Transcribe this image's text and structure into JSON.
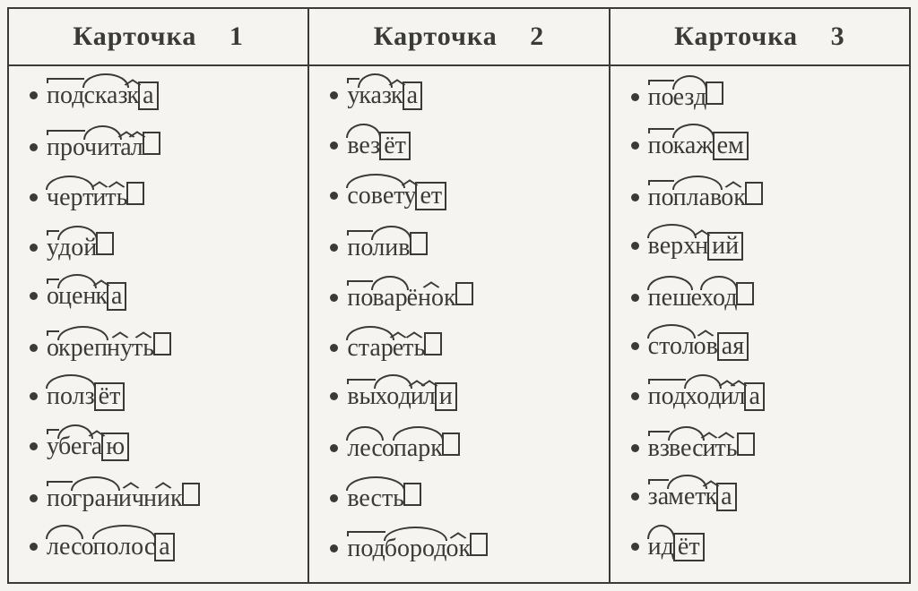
{
  "table": {
    "border_color": "#3a3a38",
    "background_color": "#f6f4f0",
    "header_fontsize": 30,
    "word_fontsize": 28,
    "columns": 3,
    "rows_per_column": 10
  },
  "cards": [
    {
      "title": "Карточка",
      "number": "1",
      "words": [
        [
          {
            "t": "под",
            "m": "pre"
          },
          {
            "t": "сказ",
            "m": "root"
          },
          {
            "t": "к",
            "m": "suf"
          },
          {
            "t": "а",
            "m": "end"
          }
        ],
        [
          {
            "t": "про",
            "m": "pre"
          },
          {
            "t": "чит",
            "m": "root"
          },
          {
            "t": "а",
            "m": "suf"
          },
          {
            "t": "л",
            "m": "suf"
          },
          {
            "t": "",
            "m": "end"
          }
        ],
        [
          {
            "t": "черт",
            "m": "root"
          },
          {
            "t": "и",
            "m": "suf"
          },
          {
            "t": "ть",
            "m": "suf"
          },
          {
            "t": "",
            "m": "end"
          }
        ],
        [
          {
            "t": "у",
            "m": "pre"
          },
          {
            "t": "дой",
            "m": "root"
          },
          {
            "t": "",
            "m": "end"
          }
        ],
        [
          {
            "t": "о",
            "m": "pre"
          },
          {
            "t": "цен",
            "m": "root"
          },
          {
            "t": "к",
            "m": "suf"
          },
          {
            "t": "а",
            "m": "end"
          }
        ],
        [
          {
            "t": "о",
            "m": "pre"
          },
          {
            "t": "креп",
            "m": "root"
          },
          {
            "t": "ну",
            "m": "suf"
          },
          {
            "t": "ть",
            "m": "suf"
          },
          {
            "t": "",
            "m": "end"
          }
        ],
        [
          {
            "t": "полз",
            "m": "root"
          },
          {
            "t": "ёт",
            "m": "end"
          }
        ],
        [
          {
            "t": "у",
            "m": "pre"
          },
          {
            "t": "бег",
            "m": "root"
          },
          {
            "t": "а",
            "m": "suf"
          },
          {
            "t": "ю",
            "m": "end"
          }
        ],
        [
          {
            "t": "по",
            "m": "pre"
          },
          {
            "t": "гран",
            "m": "root"
          },
          {
            "t": "ич",
            "m": "suf"
          },
          {
            "t": "ник",
            "m": "suf"
          },
          {
            "t": "",
            "m": "end"
          }
        ],
        [
          {
            "t": "лес",
            "m": "root"
          },
          {
            "t": "о",
            "m": "plain"
          },
          {
            "t": "полос",
            "m": "root"
          },
          {
            "t": "а",
            "m": "end"
          }
        ]
      ]
    },
    {
      "title": "Карточка",
      "number": "2",
      "words": [
        [
          {
            "t": "у",
            "m": "pre"
          },
          {
            "t": "каз",
            "m": "root"
          },
          {
            "t": "к",
            "m": "suf"
          },
          {
            "t": "а",
            "m": "end"
          }
        ],
        [
          {
            "t": "вез",
            "m": "root"
          },
          {
            "t": "ёт",
            "m": "end"
          }
        ],
        [
          {
            "t": "совет",
            "m": "root"
          },
          {
            "t": "у",
            "m": "suf"
          },
          {
            "t": "ет",
            "m": "end"
          }
        ],
        [
          {
            "t": "по",
            "m": "pre"
          },
          {
            "t": "лив",
            "m": "root"
          },
          {
            "t": "",
            "m": "end"
          }
        ],
        [
          {
            "t": "по",
            "m": "pre"
          },
          {
            "t": "вар",
            "m": "root"
          },
          {
            "t": "ёнок",
            "m": "suf"
          },
          {
            "t": "",
            "m": "end"
          }
        ],
        [
          {
            "t": "стар",
            "m": "root"
          },
          {
            "t": "е",
            "m": "suf"
          },
          {
            "t": "ть",
            "m": "suf"
          },
          {
            "t": "",
            "m": "end"
          }
        ],
        [
          {
            "t": "вы",
            "m": "pre"
          },
          {
            "t": "ход",
            "m": "root"
          },
          {
            "t": "и",
            "m": "suf"
          },
          {
            "t": "л",
            "m": "suf"
          },
          {
            "t": "и",
            "m": "end"
          }
        ],
        [
          {
            "t": "лес",
            "m": "root"
          },
          {
            "t": "о",
            "m": "plain"
          },
          {
            "t": "парк",
            "m": "root"
          },
          {
            "t": "",
            "m": "end"
          }
        ],
        [
          {
            "t": "весть",
            "m": "root"
          },
          {
            "t": "",
            "m": "end"
          }
        ],
        [
          {
            "t": "под",
            "m": "pre"
          },
          {
            "t": "бород",
            "m": "root"
          },
          {
            "t": "ок",
            "m": "suf"
          },
          {
            "t": "",
            "m": "end"
          }
        ]
      ]
    },
    {
      "title": "Карточка",
      "number": "3",
      "words": [
        [
          {
            "t": "по",
            "m": "pre"
          },
          {
            "t": "езд",
            "m": "root"
          },
          {
            "t": "",
            "m": "end"
          }
        ],
        [
          {
            "t": "по",
            "m": "pre"
          },
          {
            "t": "каж",
            "m": "root"
          },
          {
            "t": "ем",
            "m": "end"
          }
        ],
        [
          {
            "t": "по",
            "m": "pre"
          },
          {
            "t": "плав",
            "m": "root"
          },
          {
            "t": "ок",
            "m": "suf"
          },
          {
            "t": "",
            "m": "end"
          }
        ],
        [
          {
            "t": "верх",
            "m": "root"
          },
          {
            "t": "н",
            "m": "suf"
          },
          {
            "t": "ий",
            "m": "end"
          }
        ],
        [
          {
            "t": "пеш",
            "m": "root"
          },
          {
            "t": "е",
            "m": "plain"
          },
          {
            "t": "ход",
            "m": "root"
          },
          {
            "t": "",
            "m": "end"
          }
        ],
        [
          {
            "t": "стол",
            "m": "root"
          },
          {
            "t": "ов",
            "m": "suf"
          },
          {
            "t": "ая",
            "m": "end"
          }
        ],
        [
          {
            "t": "под",
            "m": "pre"
          },
          {
            "t": "ход",
            "m": "root"
          },
          {
            "t": "и",
            "m": "suf"
          },
          {
            "t": "л",
            "m": "suf"
          },
          {
            "t": "а",
            "m": "end"
          }
        ],
        [
          {
            "t": "вз",
            "m": "pre"
          },
          {
            "t": "вес",
            "m": "root"
          },
          {
            "t": "и",
            "m": "suf"
          },
          {
            "t": "ть",
            "m": "suf"
          },
          {
            "t": "",
            "m": "end"
          }
        ],
        [
          {
            "t": "за",
            "m": "pre"
          },
          {
            "t": "мет",
            "m": "root"
          },
          {
            "t": "к",
            "m": "suf"
          },
          {
            "t": "а",
            "m": "end"
          }
        ],
        [
          {
            "t": "ид",
            "m": "root"
          },
          {
            "t": "ёт",
            "m": "end"
          }
        ]
      ]
    }
  ]
}
